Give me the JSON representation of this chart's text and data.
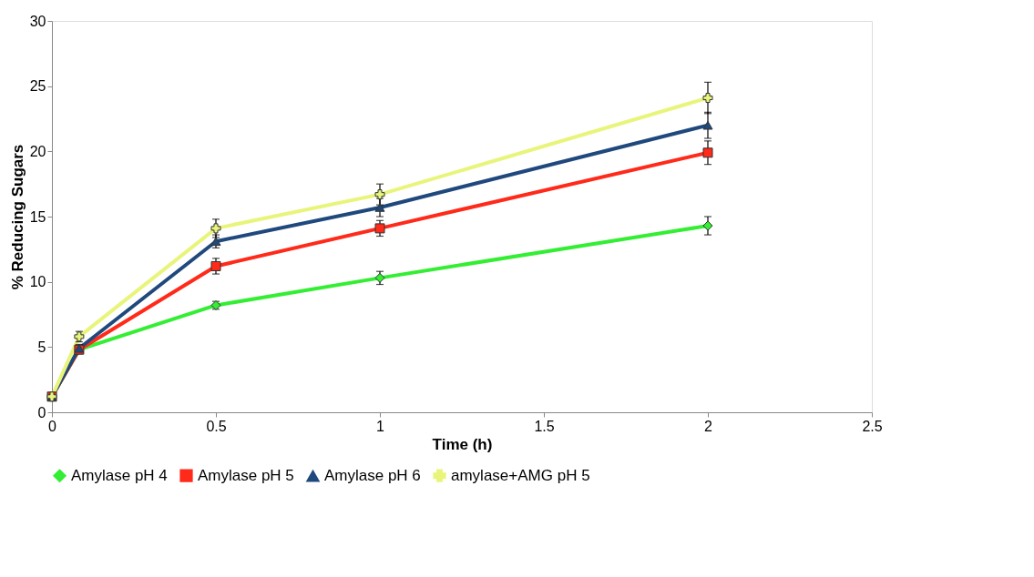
{
  "chart_data": {
    "type": "line",
    "xlabel": "Time (h)",
    "ylabel": "% Reducing Sugars",
    "x": [
      0,
      0.083,
      0.5,
      1,
      2
    ],
    "xlim": [
      0,
      2.5
    ],
    "xticks": [
      0,
      0.5,
      1,
      1.5,
      2,
      2.5
    ],
    "ylim": [
      0,
      30
    ],
    "yticks": [
      0,
      5,
      10,
      15,
      20,
      25,
      30
    ],
    "grid": false,
    "legend": "bottom",
    "series": [
      {
        "name": "Amylase pH 4",
        "color": "#33ee33",
        "marker": "diamond",
        "values": [
          1.2,
          4.8,
          8.2,
          10.3,
          14.3
        ],
        "errors": [
          0.2,
          0.3,
          0.3,
          0.5,
          0.7
        ]
      },
      {
        "name": "Amylase pH 5",
        "color": "#ff2a1a",
        "marker": "square",
        "values": [
          1.2,
          4.8,
          11.2,
          14.1,
          19.9
        ],
        "errors": [
          0.2,
          0.3,
          0.6,
          0.6,
          0.9
        ]
      },
      {
        "name": "Amylase pH 6",
        "color": "#1f497d",
        "marker": "triangle",
        "values": [
          1.2,
          4.9,
          13.1,
          15.7,
          22.0
        ],
        "errors": [
          0.2,
          0.3,
          0.5,
          0.7,
          1.0
        ]
      },
      {
        "name": "amylase+AMG pH 5",
        "color": "#e8f57a",
        "marker": "cross",
        "values": [
          1.2,
          5.8,
          14.1,
          16.7,
          24.1
        ],
        "errors": [
          0.2,
          0.4,
          0.7,
          0.8,
          1.2
        ]
      }
    ]
  }
}
